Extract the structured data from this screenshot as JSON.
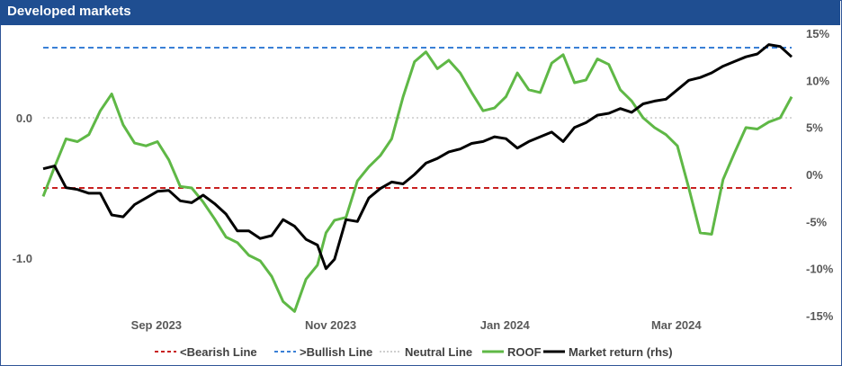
{
  "title": "Developed markets",
  "chart_data": {
    "type": "line",
    "x_ticks": [
      "Sep 2023",
      "Nov 2023",
      "Jan 2024",
      "Mar 2024"
    ],
    "left_axis": {
      "ticks": [
        0.0,
        -1.0
      ],
      "tick_labels": [
        "0.0",
        "-1.0"
      ],
      "range": [
        -1.5,
        0.55
      ]
    },
    "right_axis": {
      "ticks": [
        15,
        10,
        5,
        0,
        -5,
        -10,
        -15
      ],
      "tick_labels": [
        "15%",
        "10%",
        "5%",
        "0%",
        "-5%",
        "-10%",
        "-15%"
      ],
      "range": [
        -15,
        15
      ]
    },
    "reference_lines": [
      {
        "name": "<Bearish Line",
        "value": -0.5,
        "axis": "left",
        "color": "#c00000",
        "style": "dashed"
      },
      {
        "name": ">Bullish Line",
        "value": 0.5,
        "axis": "left",
        "color": "#1f6fd1",
        "style": "dashed"
      },
      {
        "name": "Neutral Line",
        "value": 0.0,
        "axis": "left",
        "color": "#bfbfbf",
        "style": "dotted"
      }
    ],
    "series": [
      {
        "name": "ROOF",
        "axis": "left",
        "color": "#5fb846",
        "dates": [
          "2023-07-24",
          "2023-07-28",
          "2023-08-01",
          "2023-08-05",
          "2023-08-09",
          "2023-08-13",
          "2023-08-17",
          "2023-08-21",
          "2023-08-25",
          "2023-08-29",
          "2023-09-02",
          "2023-09-06",
          "2023-09-10",
          "2023-09-14",
          "2023-09-18",
          "2023-09-22",
          "2023-09-26",
          "2023-09-30",
          "2023-10-04",
          "2023-10-08",
          "2023-10-12",
          "2023-10-16",
          "2023-10-20",
          "2023-10-24",
          "2023-10-28",
          "2023-10-31",
          "2023-11-03",
          "2023-11-07",
          "2023-11-11",
          "2023-11-15",
          "2023-11-19",
          "2023-11-23",
          "2023-11-27",
          "2023-12-01",
          "2023-12-05",
          "2023-12-09",
          "2023-12-13",
          "2023-12-17",
          "2023-12-21",
          "2023-12-25",
          "2023-12-29",
          "2024-01-02",
          "2024-01-06",
          "2024-01-10",
          "2024-01-14",
          "2024-01-18",
          "2024-01-22",
          "2024-01-26",
          "2024-01-30",
          "2024-02-03",
          "2024-02-07",
          "2024-02-11",
          "2024-02-15",
          "2024-02-19",
          "2024-02-23",
          "2024-02-27",
          "2024-03-02",
          "2024-03-06",
          "2024-03-10",
          "2024-03-14",
          "2024-03-18",
          "2024-03-22",
          "2024-03-26",
          "2024-03-30",
          "2024-04-03",
          "2024-04-07",
          "2024-04-11"
        ],
        "values": [
          -0.56,
          -0.35,
          -0.15,
          -0.17,
          -0.12,
          0.05,
          0.17,
          -0.05,
          -0.18,
          -0.2,
          -0.17,
          -0.3,
          -0.49,
          -0.5,
          -0.6,
          -0.72,
          -0.85,
          -0.89,
          -0.98,
          -1.02,
          -1.13,
          -1.31,
          -1.38,
          -1.15,
          -1.05,
          -0.82,
          -0.73,
          -0.71,
          -0.45,
          -0.35,
          -0.27,
          -0.15,
          0.15,
          0.4,
          0.47,
          0.35,
          0.41,
          0.32,
          0.18,
          0.05,
          0.07,
          0.15,
          0.32,
          0.2,
          0.18,
          0.39,
          0.45,
          0.25,
          0.27,
          0.42,
          0.38,
          0.2,
          0.12,
          0.0,
          -0.07,
          -0.12,
          -0.2,
          -0.5,
          -0.82,
          -0.83,
          -0.44,
          -0.25,
          -0.07,
          -0.08,
          -0.03,
          0.0,
          0.15
        ]
      },
      {
        "name": "Market return (rhs)",
        "axis": "right",
        "color": "#000000",
        "dates": [
          "2023-07-24",
          "2023-07-28",
          "2023-08-01",
          "2023-08-05",
          "2023-08-09",
          "2023-08-13",
          "2023-08-17",
          "2023-08-21",
          "2023-08-25",
          "2023-08-29",
          "2023-09-02",
          "2023-09-06",
          "2023-09-10",
          "2023-09-14",
          "2023-09-18",
          "2023-09-22",
          "2023-09-26",
          "2023-09-30",
          "2023-10-04",
          "2023-10-08",
          "2023-10-12",
          "2023-10-16",
          "2023-10-20",
          "2023-10-24",
          "2023-10-28",
          "2023-10-31",
          "2023-11-03",
          "2023-11-07",
          "2023-11-11",
          "2023-11-15",
          "2023-11-19",
          "2023-11-23",
          "2023-11-27",
          "2023-12-01",
          "2023-12-05",
          "2023-12-09",
          "2023-12-13",
          "2023-12-17",
          "2023-12-21",
          "2023-12-25",
          "2023-12-29",
          "2024-01-02",
          "2024-01-06",
          "2024-01-10",
          "2024-01-14",
          "2024-01-18",
          "2024-01-22",
          "2024-01-26",
          "2024-01-30",
          "2024-02-03",
          "2024-02-07",
          "2024-02-11",
          "2024-02-15",
          "2024-02-19",
          "2024-02-23",
          "2024-02-27",
          "2024-03-02",
          "2024-03-06",
          "2024-03-10",
          "2024-03-14",
          "2024-03-18",
          "2024-03-22",
          "2024-03-26",
          "2024-03-30",
          "2024-04-03",
          "2024-04-07",
          "2024-04-11"
        ],
        "values": [
          0.6,
          0.9,
          -1.4,
          -1.6,
          -2.0,
          -2.0,
          -4.3,
          -4.5,
          -3.2,
          -2.5,
          -1.8,
          -1.7,
          -2.8,
          -3.0,
          -2.2,
          -3.1,
          -4.2,
          -6.0,
          -6.0,
          -6.8,
          -6.5,
          -4.8,
          -5.5,
          -6.9,
          -7.5,
          -10.0,
          -9.0,
          -4.8,
          -5.0,
          -2.5,
          -1.5,
          -0.8,
          -1.0,
          0.0,
          1.2,
          1.7,
          2.4,
          2.7,
          3.3,
          3.5,
          4.0,
          3.8,
          2.8,
          3.5,
          4.0,
          4.5,
          3.5,
          5.0,
          5.5,
          6.3,
          6.5,
          7.0,
          6.6,
          7.5,
          7.8,
          8.0,
          9.0,
          10.0,
          10.3,
          10.8,
          11.5,
          12.0,
          12.5,
          12.8,
          13.8,
          13.6,
          12.5
        ]
      }
    ],
    "legend": {
      "position": "bottom",
      "entries": [
        "<Bearish Line",
        ">Bullish Line",
        "Neutral Line",
        "ROOF",
        "Market return (rhs)"
      ]
    }
  }
}
